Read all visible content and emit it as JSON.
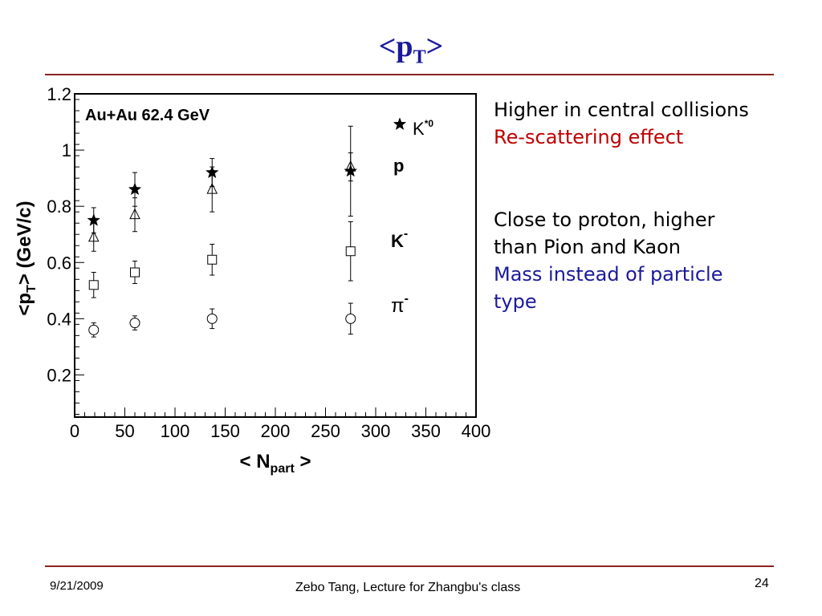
{
  "slide": {
    "title_main": "<p",
    "title_sub": "T",
    "title_end": ">",
    "bullet1_line1": "Higher in central collisions",
    "bullet1_line2": "Re-scattering effect",
    "bullet2_line1": "Close to proton, higher",
    "bullet2_line2": "than Pion and Kaon",
    "bullet2_line3": "Mass instead of particle",
    "bullet2_line4": "type",
    "footer_date": "9/21/2009",
    "footer_center": "Zebo Tang, Lecture for Zhangbu's class",
    "page_number": "24",
    "colors": {
      "title": "#1a1a9c",
      "rule": "#8b2222",
      "red_text": "#c00000",
      "blue_text": "#1a1a9c"
    }
  },
  "chart_data": {
    "type": "scatter",
    "annotation": "Au+Au 62.4 GeV",
    "xlabel_main": "< N",
    "xlabel_sub": "part",
    "xlabel_end": " >",
    "ylabel_main": "<p",
    "ylabel_sub": "T",
    "ylabel_end": "> (GeV/c)",
    "xlim": [
      0,
      400
    ],
    "ylim": [
      0.05,
      1.2
    ],
    "xticks": [
      "0",
      "50",
      "100",
      "150",
      "200",
      "250",
      "300",
      "350",
      "400"
    ],
    "yticks": [
      "0.2",
      "0.4",
      "0.6",
      "0.8",
      "1",
      "1.2"
    ],
    "grid": false,
    "series": [
      {
        "name": "K*0",
        "legend_main": "K",
        "legend_sup": "*0",
        "marker": "star",
        "points": [
          {
            "x": 19,
            "y": 0.75,
            "err": 0.045
          },
          {
            "x": 60,
            "y": 0.86,
            "err": 0.06
          },
          {
            "x": 137,
            "y": 0.92,
            "err": 0.05
          },
          {
            "x": 275,
            "y": 0.925,
            "err": 0.16
          }
        ]
      },
      {
        "name": "p",
        "legend_main": "p",
        "legend_sup": "",
        "marker": "triangle",
        "points": [
          {
            "x": 19,
            "y": 0.69,
            "err": 0.05
          },
          {
            "x": 60,
            "y": 0.77,
            "err": 0.06
          },
          {
            "x": 137,
            "y": 0.86,
            "err": 0.08
          },
          {
            "x": 275,
            "y": 0.94,
            "err": 0.05
          }
        ]
      },
      {
        "name": "K-",
        "legend_main": "K",
        "legend_sup": "-",
        "marker": "square",
        "points": [
          {
            "x": 19,
            "y": 0.52,
            "err": 0.045
          },
          {
            "x": 60,
            "y": 0.565,
            "err": 0.04
          },
          {
            "x": 137,
            "y": 0.61,
            "err": 0.055
          },
          {
            "x": 275,
            "y": 0.64,
            "err": 0.105
          }
        ]
      },
      {
        "name": "π-",
        "legend_main": "π",
        "legend_sup": "-",
        "marker": "circle",
        "points": [
          {
            "x": 19,
            "y": 0.36,
            "err": 0.025
          },
          {
            "x": 60,
            "y": 0.385,
            "err": 0.025
          },
          {
            "x": 137,
            "y": 0.4,
            "err": 0.035
          },
          {
            "x": 275,
            "y": 0.4,
            "err": 0.055
          }
        ]
      }
    ]
  }
}
